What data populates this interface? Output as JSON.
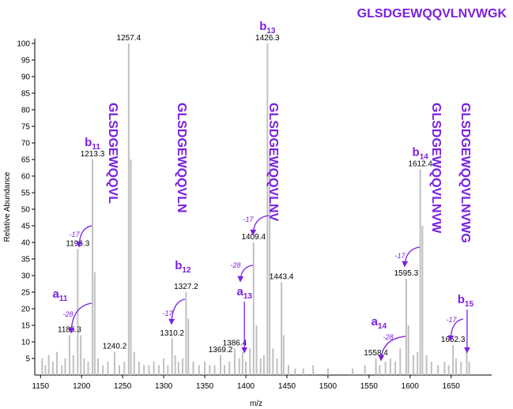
{
  "chart_data": {
    "type": "bar",
    "title": "GLSDGEWQQVLNVWGK",
    "xlabel": "m/z",
    "ylabel": "Relative Abundance",
    "xlim": [
      1143,
      1682
    ],
    "ylim": [
      0,
      100
    ],
    "xticks": [
      1150,
      1200,
      1250,
      1300,
      1350,
      1400,
      1450,
      1500,
      1550,
      1600,
      1650
    ],
    "yticks": [
      5,
      10,
      15,
      20,
      25,
      30,
      35,
      40,
      45,
      50,
      55,
      60,
      65,
      70,
      75,
      80,
      85,
      90,
      95,
      100
    ],
    "colors": {
      "bars": "#c0c0c0",
      "annotation": "#7b1fe0",
      "text": "#000000"
    },
    "peaks": [
      {
        "mz": 1152,
        "intensity": 5
      },
      {
        "mz": 1156,
        "intensity": 3
      },
      {
        "mz": 1160,
        "intensity": 6
      },
      {
        "mz": 1165,
        "intensity": 4
      },
      {
        "mz": 1170,
        "intensity": 7
      },
      {
        "mz": 1176,
        "intensity": 3
      },
      {
        "mz": 1180,
        "intensity": 5
      },
      {
        "mz": 1185.3,
        "intensity": 12,
        "label": "1185.3"
      },
      {
        "mz": 1190,
        "intensity": 6
      },
      {
        "mz": 1195.3,
        "intensity": 38,
        "label": "1195.3"
      },
      {
        "mz": 1199,
        "intensity": 12
      },
      {
        "mz": 1203,
        "intensity": 5
      },
      {
        "mz": 1208,
        "intensity": 4
      },
      {
        "mz": 1213.3,
        "intensity": 65,
        "label": "1213.3"
      },
      {
        "mz": 1216,
        "intensity": 31
      },
      {
        "mz": 1220,
        "intensity": 5
      },
      {
        "mz": 1226,
        "intensity": 3
      },
      {
        "mz": 1232,
        "intensity": 4
      },
      {
        "mz": 1240.2,
        "intensity": 7,
        "label": "1240.2"
      },
      {
        "mz": 1246,
        "intensity": 3
      },
      {
        "mz": 1252,
        "intensity": 4
      },
      {
        "mz": 1257.4,
        "intensity": 100,
        "label": "1257.4"
      },
      {
        "mz": 1260,
        "intensity": 65
      },
      {
        "mz": 1264,
        "intensity": 7
      },
      {
        "mz": 1270,
        "intensity": 4
      },
      {
        "mz": 1276,
        "intensity": 3
      },
      {
        "mz": 1282,
        "intensity": 3
      },
      {
        "mz": 1288,
        "intensity": 4
      },
      {
        "mz": 1294,
        "intensity": 3
      },
      {
        "mz": 1300,
        "intensity": 5
      },
      {
        "mz": 1305,
        "intensity": 3
      },
      {
        "mz": 1310.2,
        "intensity": 11,
        "label": "1310.2"
      },
      {
        "mz": 1314,
        "intensity": 6
      },
      {
        "mz": 1318,
        "intensity": 4
      },
      {
        "mz": 1323,
        "intensity": 5
      },
      {
        "mz": 1327.2,
        "intensity": 25,
        "label": "1327.2"
      },
      {
        "mz": 1330,
        "intensity": 17
      },
      {
        "mz": 1336,
        "intensity": 4
      },
      {
        "mz": 1343,
        "intensity": 3
      },
      {
        "mz": 1350,
        "intensity": 4
      },
      {
        "mz": 1356,
        "intensity": 3
      },
      {
        "mz": 1362,
        "intensity": 3
      },
      {
        "mz": 1369.2,
        "intensity": 6,
        "label": "1369.2"
      },
      {
        "mz": 1374,
        "intensity": 3
      },
      {
        "mz": 1380,
        "intensity": 4
      },
      {
        "mz": 1386.4,
        "intensity": 8,
        "label": "1386.4"
      },
      {
        "mz": 1392,
        "intensity": 5
      },
      {
        "mz": 1396,
        "intensity": 7
      },
      {
        "mz": 1400,
        "intensity": 4
      },
      {
        "mz": 1405,
        "intensity": 8
      },
      {
        "mz": 1409.4,
        "intensity": 40,
        "label": "1409.4"
      },
      {
        "mz": 1413,
        "intensity": 15
      },
      {
        "mz": 1418,
        "intensity": 5
      },
      {
        "mz": 1422,
        "intensity": 6
      },
      {
        "mz": 1426.3,
        "intensity": 100,
        "label": "1426.3"
      },
      {
        "mz": 1429,
        "intensity": 68
      },
      {
        "mz": 1433,
        "intensity": 8
      },
      {
        "mz": 1438,
        "intensity": 5
      },
      {
        "mz": 1443.4,
        "intensity": 28,
        "label": "1443.4"
      },
      {
        "mz": 1446,
        "intensity": 12
      },
      {
        "mz": 1452,
        "intensity": 3
      },
      {
        "mz": 1460,
        "intensity": 2
      },
      {
        "mz": 1470,
        "intensity": 2
      },
      {
        "mz": 1482,
        "intensity": 3
      },
      {
        "mz": 1500,
        "intensity": 2
      },
      {
        "mz": 1530,
        "intensity": 2
      },
      {
        "mz": 1545,
        "intensity": 3
      },
      {
        "mz": 1558.4,
        "intensity": 5,
        "label": "1558.4"
      },
      {
        "mz": 1563,
        "intensity": 3
      },
      {
        "mz": 1570,
        "intensity": 4
      },
      {
        "mz": 1576,
        "intensity": 5
      },
      {
        "mz": 1582,
        "intensity": 4
      },
      {
        "mz": 1588,
        "intensity": 8
      },
      {
        "mz": 1595.3,
        "intensity": 29,
        "label": "1595.3"
      },
      {
        "mz": 1598,
        "intensity": 15
      },
      {
        "mz": 1604,
        "intensity": 6
      },
      {
        "mz": 1609,
        "intensity": 7
      },
      {
        "mz": 1612.4,
        "intensity": 62,
        "label": "1612.4"
      },
      {
        "mz": 1615,
        "intensity": 45
      },
      {
        "mz": 1620,
        "intensity": 6
      },
      {
        "mz": 1626,
        "intensity": 4
      },
      {
        "mz": 1634,
        "intensity": 3
      },
      {
        "mz": 1642,
        "intensity": 4
      },
      {
        "mz": 1647,
        "intensity": 3
      },
      {
        "mz": 1652.3,
        "intensity": 9,
        "label": "1652.3"
      },
      {
        "mz": 1656,
        "intensity": 5
      },
      {
        "mz": 1662,
        "intensity": 4
      },
      {
        "mz": 1669,
        "intensity": 7
      },
      {
        "mz": 1672,
        "intensity": 4
      }
    ],
    "ions": [
      {
        "ion": "a",
        "sub": "11",
        "mz": 1185.3,
        "intensity": 12
      },
      {
        "ion": "b",
        "sub": "11",
        "mz": 1213.3,
        "intensity": 65
      },
      {
        "ion": "b",
        "sub": "12",
        "mz": 1327.2,
        "intensity": 25
      },
      {
        "ion": "a",
        "sub": "13",
        "mz": 1398.3,
        "intensity": 6
      },
      {
        "ion": "b",
        "sub": "13",
        "mz": 1426.3,
        "intensity": 100
      },
      {
        "ion": "a",
        "sub": "14",
        "mz": 1584.4,
        "intensity": 6
      },
      {
        "ion": "b",
        "sub": "14",
        "mz": 1612.4,
        "intensity": 62
      },
      {
        "ion": "b",
        "sub": "15",
        "mz": 1669.4,
        "intensity": 7
      }
    ],
    "losses": [
      {
        "text": "-17",
        "from_ion": "b11",
        "to_peak": 1195.3
      },
      {
        "text": "-28",
        "from_ion": "b11",
        "to_peak": 1185.3
      },
      {
        "text": "-17",
        "from_ion": "b12",
        "to_peak": 1310.2
      },
      {
        "text": "-17",
        "from_ion": "b13",
        "to_peak": 1409.4
      },
      {
        "text": "-28",
        "from_ion": "b13",
        "to_peak": 1398.3
      },
      {
        "text": "-17",
        "from_ion": "b14",
        "to_peak": 1595.3
      },
      {
        "text": "-28",
        "from_ion": "b14",
        "to_peak": 1584.4
      },
      {
        "text": "-17",
        "from_ion": "b15",
        "to_peak": 1652.3
      }
    ],
    "sequences": [
      "GLSDGEWQQVL",
      "GLSDGEWQQVLN",
      "GLSDGEWQQVLNV",
      "GLSDGEWQQVLNVW",
      "GLSDGEWQQVLNVWG"
    ]
  }
}
